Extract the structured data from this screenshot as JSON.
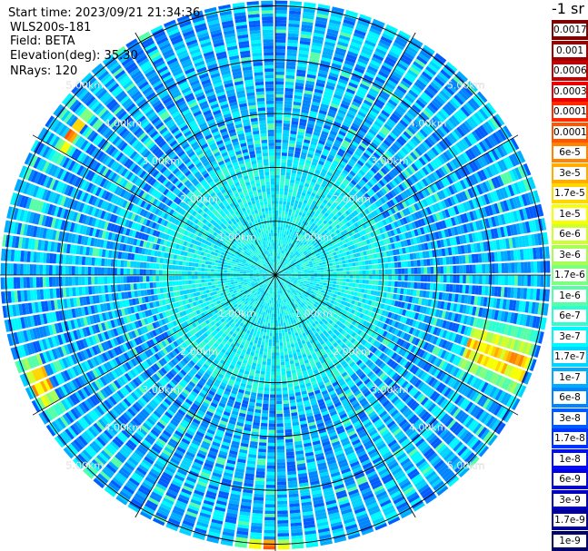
{
  "header": {
    "start_time": "Start time: 2023/09/21 21:34:36",
    "instrument": "WLS200s-181",
    "field": "Field: BETA",
    "elevation": "Elevation(deg): 35.30",
    "nrays": "NRays: 120"
  },
  "colorbar": {
    "unit_label": "-1 sr",
    "levels": [
      "0.0017",
      "0.001",
      "0.0006",
      "0.0003",
      "0.00017",
      "0.0001",
      "6e-5",
      "3e-5",
      "1.7e-5",
      "1e-5",
      "6e-6",
      "3e-6",
      "1.7e-6",
      "1e-6",
      "6e-7",
      "3e-7",
      "1.7e-7",
      "1e-7",
      "6e-8",
      "3e-8",
      "1.7e-8",
      "1e-8",
      "6e-9",
      "3e-9",
      "1.7e-9",
      "1e-9"
    ],
    "colors": [
      "#7f0000",
      "#a00000",
      "#c40000",
      "#ea0000",
      "#ff2a00",
      "#ff5500",
      "#ff8300",
      "#ffab00",
      "#ffd600",
      "#f8ff00",
      "#d0ff2e",
      "#a7ff56",
      "#7fff7f",
      "#56ffa7",
      "#2effd0",
      "#00f8ff",
      "#00d4ff",
      "#00acff",
      "#0084ff",
      "#005cff",
      "#0034ff",
      "#000cff",
      "#0000e3",
      "#0000bc",
      "#000095",
      "#00006d"
    ]
  },
  "chart_data": {
    "type": "heatmap",
    "projection": "polar PPI scan",
    "field": "BETA",
    "unit": "sr-1",
    "range_labels": [
      "1.00km",
      "2.00km",
      "3.00km",
      "4.00km",
      "5.00km"
    ],
    "range_rings_km": [
      1,
      2,
      3,
      4,
      5
    ],
    "max_range_km": 5.1,
    "n_rays": 120,
    "elevation_deg": 35.3,
    "color_scale": "log",
    "value_range": [
      1e-09,
      0.0017
    ],
    "typical_value": "1e-7 to 6e-7",
    "enhanced_regions": [
      {
        "azimuth_deg": 110,
        "range_km": [
          3.8,
          5.0
        ],
        "value": "1e-6 to 1e-5"
      },
      {
        "azimuth_deg": 245,
        "range_km": [
          4.6,
          5.0
        ],
        "value": "1e-6 to 3e-5"
      },
      {
        "azimuth_deg": 182,
        "range_km": [
          4.9,
          5.1
        ],
        "value": "3e-6 to 6e-5"
      },
      {
        "azimuth_deg": 305,
        "range_km": [
          4.5,
          4.7
        ],
        "value": "1e-5"
      }
    ]
  }
}
